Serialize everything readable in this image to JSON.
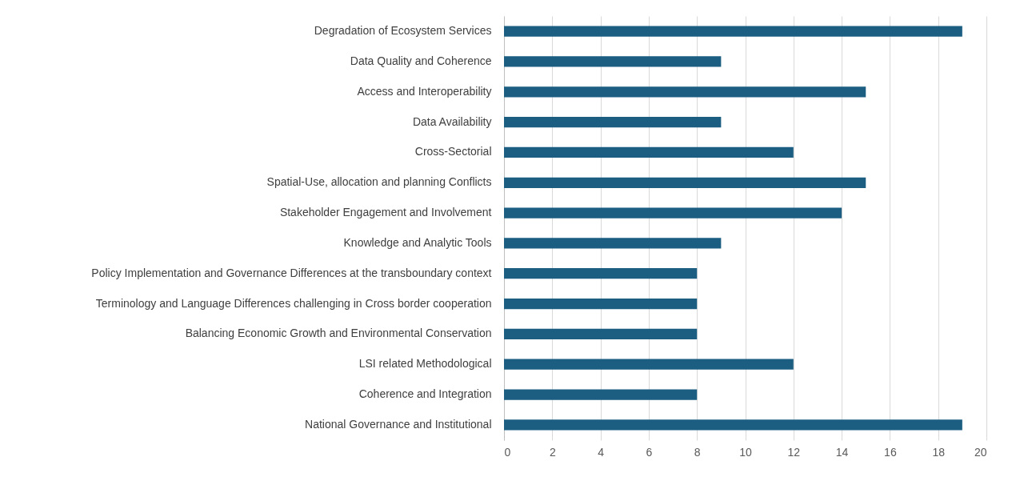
{
  "chart_data": {
    "type": "bar",
    "orientation": "horizontal",
    "categories": [
      "Degradation of Ecosystem Services",
      "Data Quality and Coherence",
      "Access and Interoperability",
      "Data Availability",
      "Cross-Sectorial",
      "Spatial-Use, allocation and planning Conflicts",
      "Stakeholder Engagement and Involvement",
      "Knowledge and Analytic Tools",
      "Policy Implementation and Governance Differences at the transboundary context",
      "Terminology and Language Differences challenging in Cross border cooperation",
      "Balancing Economic Growth and Environmental Conservation",
      "LSI related Methodological",
      "Coherence and Integration",
      "National Governance and Institutional"
    ],
    "values": [
      19,
      9,
      15,
      9,
      12,
      15,
      14,
      9,
      8,
      8,
      8,
      12,
      8,
      19
    ],
    "color": "#1b5e82",
    "xlim": [
      0,
      20
    ],
    "xticks": [
      0,
      2,
      4,
      6,
      8,
      10,
      12,
      14,
      16,
      18,
      20
    ],
    "grid": "x"
  }
}
